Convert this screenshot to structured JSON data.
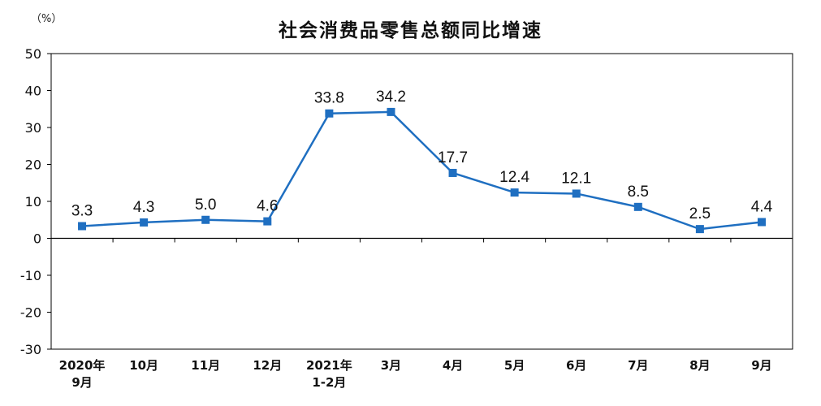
{
  "chart_data": {
    "type": "line",
    "title": "社会消费品零售总额同比增速",
    "y_unit": "（%）",
    "xlabel": "",
    "ylabel": "",
    "ylim": [
      -30,
      50
    ],
    "y_ticks": [
      50,
      40,
      30,
      20,
      10,
      0,
      -10,
      -20,
      -30
    ],
    "grid": false,
    "legend": "none",
    "categories": [
      {
        "line1": "2020年",
        "line2": "9月"
      },
      {
        "line1": "10月",
        "line2": ""
      },
      {
        "line1": "11月",
        "line2": ""
      },
      {
        "line1": "12月",
        "line2": ""
      },
      {
        "line1": "2021年",
        "line2": "1-2月"
      },
      {
        "line1": "3月",
        "line2": ""
      },
      {
        "line1": "4月",
        "line2": ""
      },
      {
        "line1": "5月",
        "line2": ""
      },
      {
        "line1": "6月",
        "line2": ""
      },
      {
        "line1": "7月",
        "line2": ""
      },
      {
        "line1": "8月",
        "line2": ""
      },
      {
        "line1": "9月",
        "line2": ""
      }
    ],
    "values": [
      3.3,
      4.3,
      5.0,
      4.6,
      33.8,
      34.2,
      17.7,
      12.4,
      12.1,
      8.5,
      2.5,
      4.4
    ],
    "value_labels": [
      "3.3",
      "4.3",
      "5.0",
      "4.6",
      "33.8",
      "34.2",
      "17.7",
      "12.4",
      "12.1",
      "8.5",
      "2.5",
      "4.4"
    ],
    "series_color": "#1f6fc1",
    "axis_color": "#000000"
  }
}
